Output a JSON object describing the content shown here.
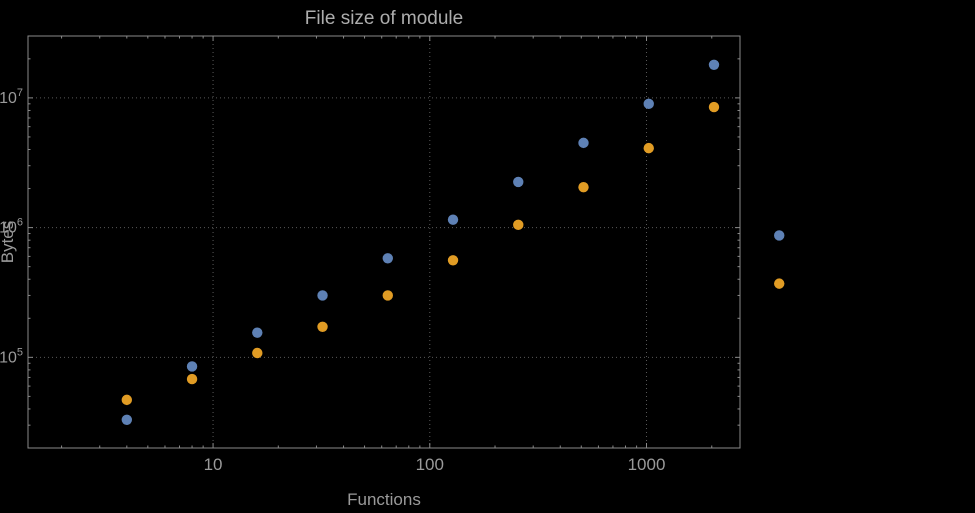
{
  "chart_data": {
    "type": "scatter",
    "title": "File size of module",
    "xlabel": "Functions",
    "ylabel": "Bytes",
    "x_scale": "log",
    "y_scale": "log",
    "xlim": [
      1.4,
      2700
    ],
    "ylim": [
      20000,
      30000000
    ],
    "grid": "dotted-at-decades",
    "legend": "none",
    "x": [
      4,
      8,
      16,
      32,
      64,
      128,
      256,
      512,
      1024,
      2048,
      4096
    ],
    "series": [
      {
        "name": "series-blue",
        "color": "#5e81b5",
        "values": [
          33000,
          85000,
          155000,
          300000,
          580000,
          1150000,
          2250000,
          4500000,
          9000000,
          18000000,
          870000
        ]
      },
      {
        "name": "series-orange",
        "color": "#e19c24",
        "values": [
          47000,
          68000,
          108000,
          172000,
          300000,
          560000,
          1050000,
          2050000,
          4100000,
          8500000,
          370000
        ]
      }
    ],
    "x_ticks": [
      {
        "value": 10,
        "label": "10"
      },
      {
        "value": 100,
        "label": "100"
      },
      {
        "value": 1000,
        "label": "1000"
      }
    ],
    "y_ticks": [
      {
        "value": 100000,
        "base": "10",
        "exp": "5"
      },
      {
        "value": 1000000,
        "base": "10",
        "exp": "6"
      },
      {
        "value": 10000000,
        "base": "10",
        "exp": "7"
      }
    ],
    "colors": {
      "background": "#000000",
      "frame": "#8a8a8a",
      "grid": "#5a5a5a",
      "text": "#9a9a9a",
      "title": "#adadad"
    }
  }
}
